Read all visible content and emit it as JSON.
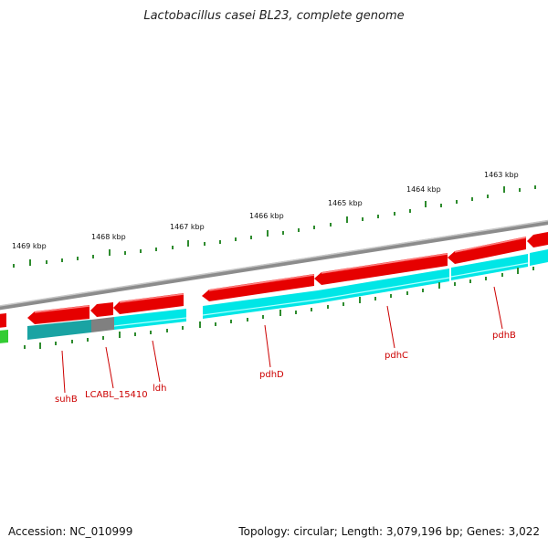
{
  "title": "Lactobacillus casei BL23, complete genome",
  "footer": {
    "accession": "Accession: NC_010999",
    "summary": "Topology: circular; Length: 3,079,196 bp; Genes: 3,022"
  },
  "colors": {
    "background": "#ffffff",
    "backbone": "#8c8c8c",
    "forward_gene": "#e60000",
    "reverse_gene": "#00e6e6",
    "reverse_gene_dark": "#1aa3a3",
    "pseudogene": "#808080",
    "rna_gene": "#33cc33",
    "tick": "#2e8b2e",
    "label": "#cc0000"
  },
  "scale_labels": [
    "1469 kbp",
    "1468 kbp",
    "1467 kbp",
    "1466 kbp",
    "1465 kbp",
    "1464 kbp",
    "1463 kbp"
  ],
  "gene_labels": [
    "suhB",
    "LCABL_15410",
    "ldh",
    "pdhD",
    "pdhC",
    "pdhB"
  ]
}
